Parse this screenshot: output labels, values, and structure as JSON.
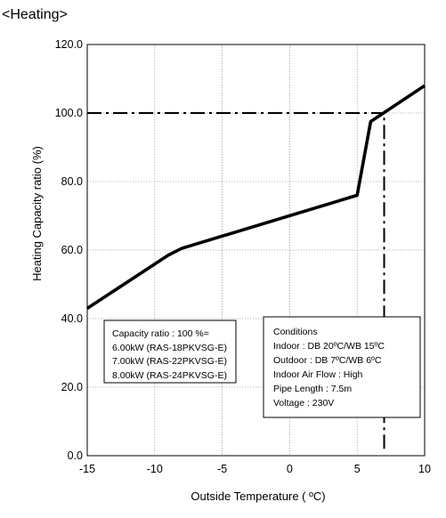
{
  "page": {
    "title": "<Heating>"
  },
  "chart_data": {
    "type": "line",
    "title": "<Heating>",
    "xlabel": "Outside Temperature ( ºC)",
    "ylabel": "Heating Capacity ratio (%)",
    "xlim": [
      -15,
      10
    ],
    "ylim": [
      0,
      120
    ],
    "x_ticks": [
      -15,
      -10,
      -5,
      0,
      5,
      10
    ],
    "x_tick_labels": [
      "-15",
      "-10",
      "-5",
      "0",
      "5",
      "10"
    ],
    "y_ticks": [
      0,
      20,
      40,
      60,
      80,
      100,
      120
    ],
    "y_tick_labels": [
      "0.0",
      "20.0",
      "40.0",
      "60.0",
      "80.0",
      "100.0",
      "120.0"
    ],
    "grid": true,
    "series": [
      {
        "x": [
          -15,
          -9,
          -8,
          5,
          6,
          10
        ],
        "y": [
          43,
          58.5,
          60.5,
          76,
          97.5,
          108
        ],
        "color": "#000000",
        "style": "solid"
      }
    ],
    "reference_lines": [
      {
        "orientation": "horizontal",
        "value": 100,
        "from": -15,
        "to": 7,
        "style": "dash-dot"
      },
      {
        "orientation": "vertical",
        "value": 7,
        "from": 2,
        "to": 100,
        "style": "dash-dot"
      }
    ],
    "annotations": {
      "capacity_box": [
        "Capacity ratio : 100 %=",
        "6.00kW (RAS-18PKVSG-E)",
        "7.00kW (RAS-22PKVSG-E)",
        "8.00kW (RAS-24PKVSG-E)"
      ],
      "conditions_box": [
        "Conditions",
        "Indoor : DB 20ºC/WB 15ºC",
        "Outdoor : DB 7ºC/WB 6ºC",
        "Indoor Air Flow : High",
        "Pipe Length : 7.5m",
        "Voltage : 230V"
      ]
    }
  }
}
